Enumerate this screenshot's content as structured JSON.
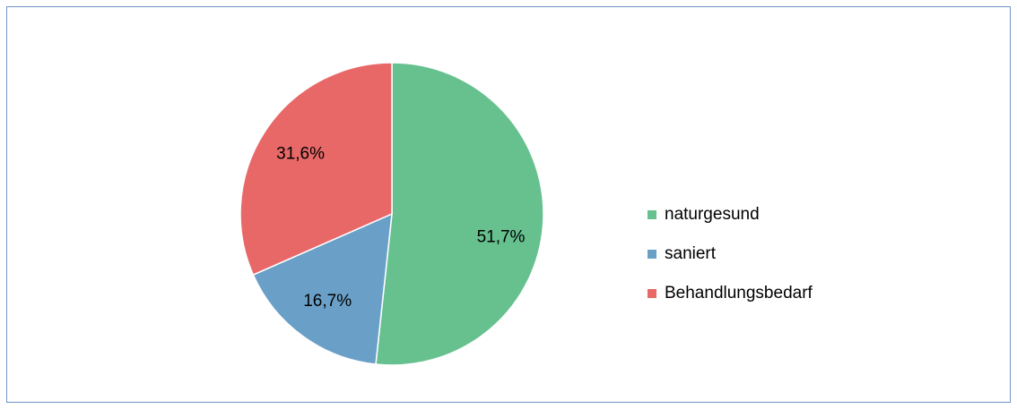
{
  "chart_data": {
    "type": "pie",
    "categories": [
      "naturgesund",
      "saniert",
      "Behandlungsbedarf"
    ],
    "values": [
      51.7,
      16.7,
      31.6
    ],
    "value_labels": [
      "51,7%",
      "16,7%",
      "31,6%"
    ],
    "colors": [
      "#66c18f",
      "#6aa0c8",
      "#e86868"
    ],
    "legend": "right"
  }
}
